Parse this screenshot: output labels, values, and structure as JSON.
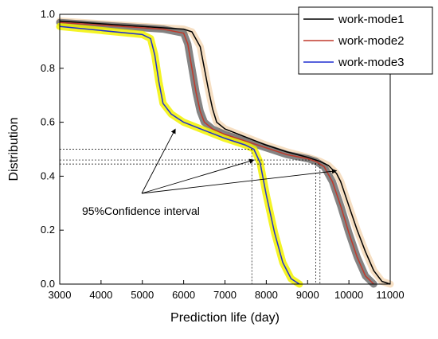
{
  "chart_data": {
    "type": "line",
    "title": "",
    "xlabel": "Prediction life (day)",
    "ylabel": "Distribution",
    "xlim": [
      3000,
      11000
    ],
    "ylim": [
      0,
      1.0
    ],
    "x_ticks": [
      3000,
      4000,
      5000,
      6000,
      7000,
      8000,
      9000,
      10000,
      11000
    ],
    "y_ticks": [
      0.0,
      0.2,
      0.4,
      0.6,
      0.8,
      1.0
    ],
    "grid": false,
    "legend_position": "top-right",
    "annotation": "95%Confidence interval",
    "series": [
      {
        "name": "work-mode1",
        "color": "#000000",
        "band_color": "#f5d9b8",
        "points": [
          [
            3000,
            0.975
          ],
          [
            4000,
            0.965
          ],
          [
            5000,
            0.955
          ],
          [
            6000,
            0.945
          ],
          [
            6200,
            0.935
          ],
          [
            6400,
            0.88
          ],
          [
            6500,
            0.8
          ],
          [
            6600,
            0.72
          ],
          [
            6700,
            0.65
          ],
          [
            6800,
            0.6
          ],
          [
            7000,
            0.575
          ],
          [
            7500,
            0.545
          ],
          [
            8000,
            0.515
          ],
          [
            8500,
            0.49
          ],
          [
            9000,
            0.47
          ],
          [
            9300,
            0.455
          ],
          [
            9500,
            0.44
          ],
          [
            9700,
            0.41
          ],
          [
            9800,
            0.38
          ],
          [
            10000,
            0.29
          ],
          [
            10200,
            0.2
          ],
          [
            10400,
            0.12
          ],
          [
            10600,
            0.05
          ],
          [
            10800,
            0.01
          ],
          [
            11000,
            0.0
          ]
        ]
      },
      {
        "name": "work-mode2",
        "color": "#c0392b",
        "band_color": "#6e6e6e",
        "points": [
          [
            3000,
            0.97
          ],
          [
            4000,
            0.96
          ],
          [
            5000,
            0.95
          ],
          [
            5500,
            0.945
          ],
          [
            6000,
            0.93
          ],
          [
            6100,
            0.89
          ],
          [
            6200,
            0.8
          ],
          [
            6300,
            0.71
          ],
          [
            6400,
            0.64
          ],
          [
            6500,
            0.6
          ],
          [
            6700,
            0.575
          ],
          [
            7000,
            0.555
          ],
          [
            7500,
            0.53
          ],
          [
            8000,
            0.505
          ],
          [
            8500,
            0.48
          ],
          [
            9000,
            0.465
          ],
          [
            9200,
            0.455
          ],
          [
            9400,
            0.435
          ],
          [
            9600,
            0.38
          ],
          [
            9800,
            0.29
          ],
          [
            10000,
            0.19
          ],
          [
            10200,
            0.1
          ],
          [
            10400,
            0.03
          ],
          [
            10600,
            0.0
          ]
        ]
      },
      {
        "name": "work-mode3",
        "color": "#1f2fd0",
        "band_color": "#f2f200",
        "points": [
          [
            3000,
            0.955
          ],
          [
            4000,
            0.94
          ],
          [
            5000,
            0.925
          ],
          [
            5200,
            0.91
          ],
          [
            5300,
            0.85
          ],
          [
            5400,
            0.75
          ],
          [
            5500,
            0.67
          ],
          [
            5700,
            0.63
          ],
          [
            6000,
            0.6
          ],
          [
            6500,
            0.57
          ],
          [
            7000,
            0.54
          ],
          [
            7500,
            0.515
          ],
          [
            7700,
            0.5
          ],
          [
            7850,
            0.45
          ],
          [
            8000,
            0.33
          ],
          [
            8200,
            0.19
          ],
          [
            8400,
            0.08
          ],
          [
            8600,
            0.02
          ],
          [
            8800,
            0.0
          ]
        ]
      }
    ],
    "reference_lines": [
      {
        "y": 0.5,
        "x_end": 7650
      },
      {
        "y": 0.46,
        "x_end": 9200
      },
      {
        "y": 0.445,
        "x_end": 9300
      }
    ]
  }
}
